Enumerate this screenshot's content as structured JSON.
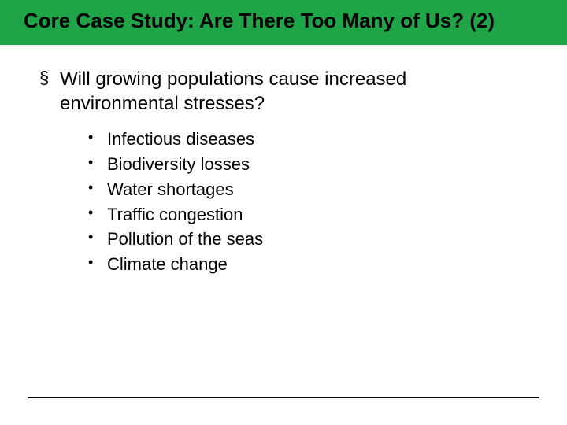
{
  "colors": {
    "title_bar_bg": "#1fa547",
    "title_text": "#000000",
    "body_text": "#000000",
    "background": "#ffffff",
    "footer_line": "#000000"
  },
  "title": "Core Case Study: Are There Too Many of Us? (2)",
  "main_bullet_char": "§",
  "sub_bullet_char": "•",
  "main": {
    "text": "Will growing populations cause increased environmental stresses?"
  },
  "sub": [
    "Infectious diseases",
    "Biodiversity losses",
    "Water shortages",
    "Traffic congestion",
    "Pollution of the seas",
    "Climate change"
  ],
  "typography": {
    "title_fontsize": 26,
    "main_fontsize": 24,
    "sub_fontsize": 22,
    "font_family": "Arial"
  }
}
